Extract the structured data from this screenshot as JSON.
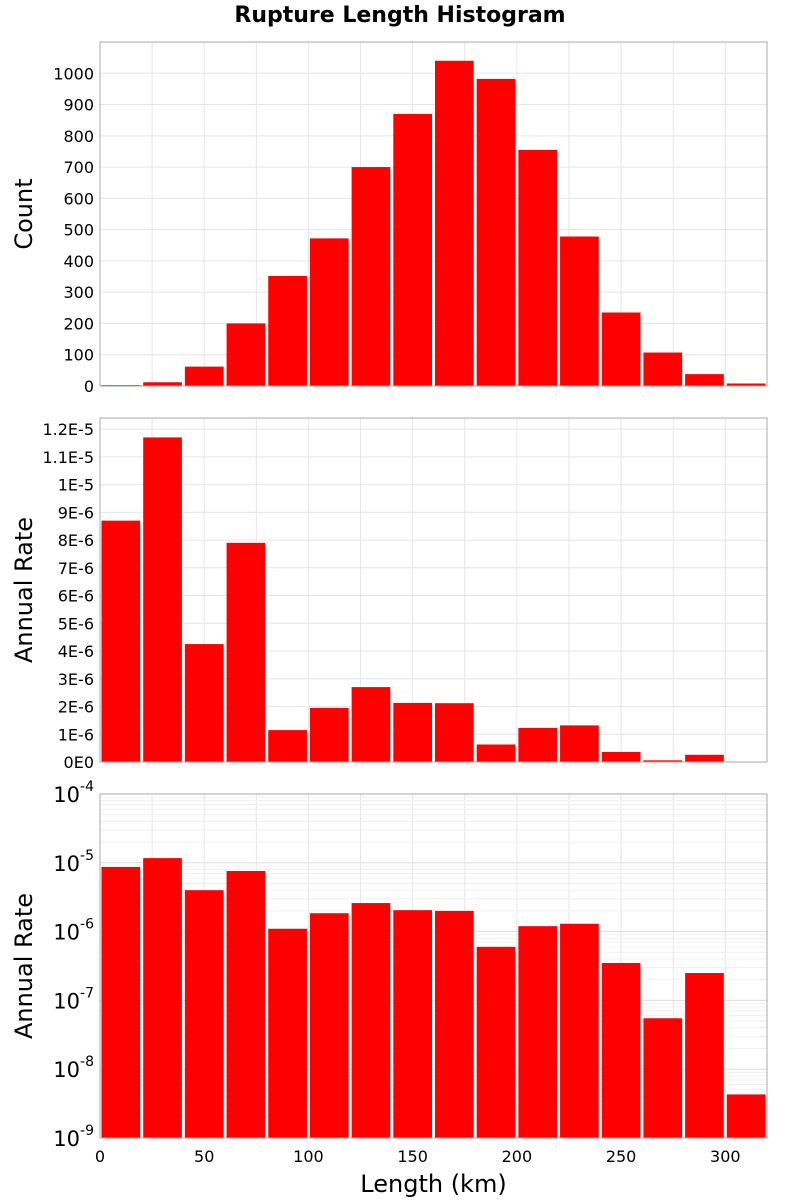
{
  "title": "Rupture Length Histogram",
  "xlabel": "Length (km)",
  "bar_color": "#ff0000",
  "chart_data": [
    {
      "type": "bar",
      "title": "Rupture Length Histogram",
      "ylabel": "Count",
      "xlabel": "Length (km)",
      "xlim": [
        0,
        320
      ],
      "ylim": [
        0,
        1100
      ],
      "yscale": "linear",
      "grid": true,
      "bin_width": 20,
      "x": [
        10,
        30,
        50,
        70,
        90,
        110,
        130,
        150,
        170,
        190,
        210,
        230,
        250,
        270,
        290,
        310
      ],
      "values": [
        3,
        12,
        62,
        200,
        352,
        472,
        700,
        870,
        1040,
        982,
        755,
        478,
        235,
        107,
        38,
        8
      ],
      "yticks": [
        0,
        100,
        200,
        300,
        400,
        500,
        600,
        700,
        800,
        900,
        1000
      ],
      "ytick_labels": [
        "0",
        "100",
        "200",
        "300",
        "400",
        "500",
        "600",
        "700",
        "800",
        "900",
        "1000"
      ]
    },
    {
      "type": "bar",
      "ylabel": "Annual Rate",
      "xlabel": "Length (km)",
      "xlim": [
        0,
        320
      ],
      "ylim": [
        0,
        1.24e-05
      ],
      "yscale": "linear",
      "grid": true,
      "bin_width": 20,
      "x": [
        10,
        30,
        50,
        70,
        90,
        110,
        130,
        150,
        170,
        190,
        210,
        230,
        250,
        270,
        290,
        310
      ],
      "values": [
        8.7e-06,
        1.17e-05,
        4.25e-06,
        7.9e-06,
        1.15e-06,
        1.95e-06,
        2.7e-06,
        2.13e-06,
        2.12e-06,
        6.3e-07,
        1.23e-06,
        1.32e-06,
        3.6e-07,
        6e-08,
        2.6e-07,
        4.5e-09
      ],
      "yticks": [
        0,
        1e-06,
        2e-06,
        3e-06,
        4e-06,
        5e-06,
        6e-06,
        7e-06,
        8e-06,
        9e-06,
        1e-05,
        1.1e-05,
        1.2e-05
      ],
      "ytick_labels": [
        "0E0",
        "1E-6",
        "2E-6",
        "3E-6",
        "4E-6",
        "5E-6",
        "6E-6",
        "7E-6",
        "8E-6",
        "9E-6",
        "1E-5",
        "1.1E-5",
        "1.2E-5"
      ]
    },
    {
      "type": "bar",
      "ylabel": "Annual Rate",
      "xlabel": "Length (km)",
      "xlim": [
        0,
        320
      ],
      "ylim": [
        1e-09,
        0.0001
      ],
      "yscale": "log",
      "grid": true,
      "bin_width": 20,
      "x": [
        10,
        30,
        50,
        70,
        90,
        110,
        130,
        150,
        170,
        190,
        210,
        230,
        250,
        270,
        290,
        310
      ],
      "values": [
        8.7e-06,
        1.17e-05,
        4e-06,
        7.6e-06,
        1.1e-06,
        1.85e-06,
        2.6e-06,
        2.05e-06,
        2e-06,
        6e-07,
        1.2e-06,
        1.3e-06,
        3.5e-07,
        5.5e-08,
        2.5e-07,
        4.3e-09
      ],
      "ytick_bases": [
        "10",
        "10",
        "10",
        "10",
        "10",
        "10"
      ],
      "ytick_exponents": [
        "-9",
        "-8",
        "-7",
        "-6",
        "-5",
        "-4"
      ],
      "xticks": [
        0,
        50,
        100,
        150,
        200,
        250,
        300
      ],
      "xtick_labels": [
        "0",
        "50",
        "100",
        "150",
        "200",
        "250",
        "300"
      ]
    }
  ]
}
